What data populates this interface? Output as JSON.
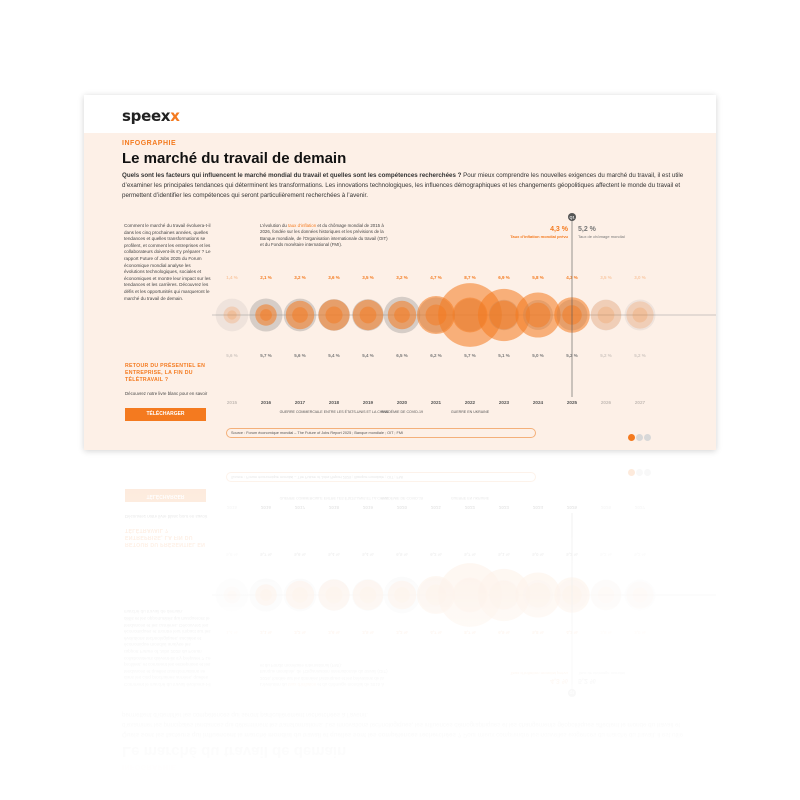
{
  "brand": {
    "logo_main": "speex",
    "logo_accent": "x"
  },
  "kicker": "INFOGRAPHIE",
  "title": "Le marché du travail de demain",
  "intro_bold": "Quels sont les facteurs qui influencent le marché mondial du travail et quelles sont les compétences recherchées ?",
  "intro_rest": " Pour mieux comprendre les nouvelles exigences du marché du travail, il est utile d’examiner les principales tendances qui déterminent les transformations. Les innovations technologiques, les influences démographiques et les changements géopolitiques affectent le monde du travail et permettent d’identifier les compétences qui seront particulièrement recherchées à l’avenir.",
  "left_text": "Comment le marché du travail évoluera-t-il dans les cinq prochaines années, quelles tendances et quelles transformations se profilent, et comment les entreprises et les collaborateurs doivent-ils s’y préparer ? Le rapport Future of Jobs 2025 du Forum économique mondial analyse les évolutions technologiques, sociales et économiques et montre leur impact sur les tendances et les carrières. Découvrez les défis et les opportunités qui marqueront le marché du travail de demain.",
  "note_text_1": "L’évolution du ",
  "note_highlight": "taux d’inflation",
  "note_text_2": " et du chômage mondial de 2015 à 2026, fondée sur les données historiques et les prévisions de la Banque mondiale, de l’Organisation internationale du travail (OIT) et du Fonds monétaire international (FMI).",
  "retour_title": "RETOUR DU PRÉSENTIEL EN ENTREPRISE, LA FIN DU TÉLÉTRAVAIL ?",
  "retour_desc": "Découvrez notre livre blanc pour en savoir",
  "download_label": "TÉLÉCHARGER",
  "source_text": "Source : Forum économique mondial – The Future of Jobs Report 2025 ; Banque mondiale ; OIT ; FMI",
  "colors": {
    "accent": "#f47a1f",
    "grey": "#8c8c8c",
    "bg": "#fdf0e7"
  },
  "chart_data": {
    "type": "scatter",
    "subtype": "bubble",
    "x": [
      "2015",
      "2016",
      "2017",
      "2018",
      "2019",
      "2020",
      "2021",
      "2022",
      "2023",
      "2024",
      "2025",
      "2026",
      "2027"
    ],
    "series": [
      {
        "name": "Taux d’inflation mondial prévu",
        "values": [
          1.4,
          2.1,
          3.2,
          3.6,
          3.5,
          3.2,
          4.7,
          8.7,
          6.9,
          5.8,
          4.3,
          3.5,
          3.0
        ],
        "labels": [
          "1,4 %",
          "2,1 %",
          "3,2 %",
          "3,6 %",
          "3,5 %",
          "3,2 %",
          "4,7 %",
          "8,7 %",
          "6,9 %",
          "5,8 %",
          "4,3 %",
          "3,5 %",
          "3,0 %"
        ]
      },
      {
        "name": "Taux de chômage mondial",
        "values": [
          5.6,
          5.7,
          5.6,
          5.4,
          5.4,
          6.5,
          6.2,
          5.7,
          5.1,
          5.0,
          5.2,
          5.2,
          5.2
        ],
        "labels": [
          "5,6 %",
          "5,7 %",
          "5,6 %",
          "5,4 %",
          "5,4 %",
          "6,5 %",
          "6,2 %",
          "5,7 %",
          "5,1 %",
          "5,0 %",
          "5,2 %",
          "5,2 %",
          "5,2 %"
        ]
      }
    ],
    "annotations": [
      {
        "x": "2020",
        "text": "PANDÉMIE DE COVID-19"
      },
      {
        "x": "2018",
        "text": "GUERRE COMMERCIALE ENTRE LES ÉTATS-UNIS ET LA CHINE"
      },
      {
        "x": "2022",
        "text": "GUERRE EN UKRAINE"
      }
    ],
    "highlight": {
      "x": "2025",
      "badge": "Q1",
      "inflation_label": "4,3 %",
      "unemployment_label": "5,2 %",
      "inflation_caption": "Taux d’inflation mondial prévu",
      "unemployment_caption": "Taux de chômage mondial"
    }
  }
}
